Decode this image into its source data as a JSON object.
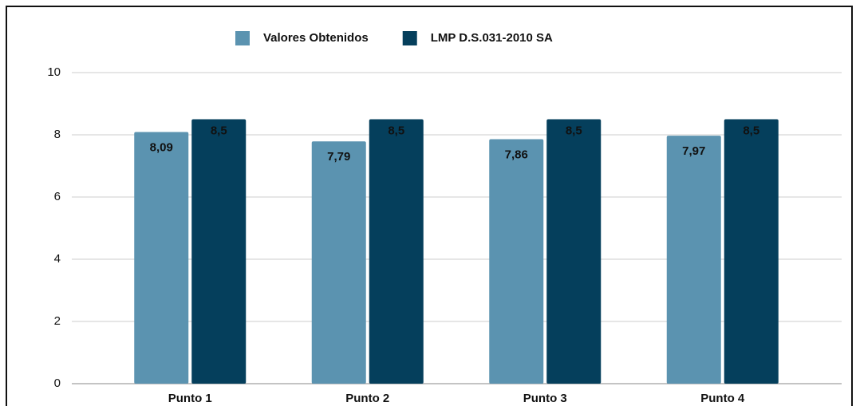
{
  "chart_data": {
    "type": "bar",
    "categories": [
      "Punto 1",
      "Punto 2",
      "Punto 3",
      "Punto 4"
    ],
    "series": [
      {
        "name": "Valores Obtenidos",
        "color": "#5b93b0",
        "values": [
          8.09,
          7.79,
          7.86,
          7.97
        ],
        "value_labels": [
          "8,09",
          "7,79",
          "7,86",
          "7,97"
        ]
      },
      {
        "name": "LMP D.S.031-2010 SA",
        "color": "#053f5c",
        "values": [
          8.5,
          8.5,
          8.5,
          8.5
        ],
        "value_labels": [
          "8,5",
          "8,5",
          "8,5",
          "8,5"
        ]
      }
    ],
    "ylim": [
      0,
      10
    ],
    "yticks": [
      0,
      2,
      4,
      6,
      8,
      10
    ],
    "grid": true,
    "legend": "top"
  }
}
